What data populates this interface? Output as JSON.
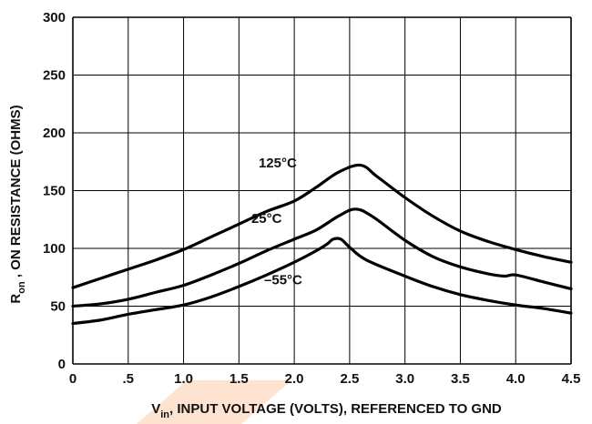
{
  "chart_data": {
    "type": "line",
    "title": "",
    "xlabel": {
      "main": "V",
      "sub": "in",
      "rest": ", INPUT VOLTAGE (VOLTS), REFERENCED TO GND"
    },
    "ylabel": {
      "main": "R",
      "sub": "on",
      "rest": " , ON RESISTANCE (OHMS)"
    },
    "xlim": [
      0,
      4.5
    ],
    "ylim": [
      0,
      300
    ],
    "grid": true,
    "x_ticks": [
      0,
      0.5,
      1.0,
      1.5,
      2.0,
      2.5,
      3.0,
      3.5,
      4.0,
      4.5
    ],
    "x_tick_labels": [
      "0",
      ".5",
      "1.0",
      "1.5",
      "2.0",
      "2.5",
      "3.0",
      "3.5",
      "4.0",
      "4.5"
    ],
    "y_ticks": [
      0,
      50,
      100,
      150,
      200,
      250,
      300
    ],
    "y_tick_labels": [
      "0",
      "50",
      "100",
      "150",
      "200",
      "250",
      "300"
    ],
    "series": [
      {
        "name": "125°C",
        "label_at": [
          1.85,
          170
        ],
        "x": [
          0,
          0.25,
          0.5,
          0.75,
          1.0,
          1.25,
          1.5,
          1.75,
          2.0,
          2.2,
          2.4,
          2.6,
          2.75,
          3.0,
          3.25,
          3.5,
          3.75,
          4.0,
          4.25,
          4.5
        ],
        "y": [
          66,
          74,
          82,
          90,
          99,
          110,
          121,
          132,
          141,
          153,
          166,
          172,
          162,
          144,
          128,
          115,
          106,
          99,
          93,
          88
        ]
      },
      {
        "name": "25°C",
        "label_at": [
          1.75,
          122
        ],
        "x": [
          0,
          0.25,
          0.5,
          0.75,
          1.0,
          1.25,
          1.5,
          1.75,
          2.0,
          2.2,
          2.4,
          2.55,
          2.7,
          3.0,
          3.25,
          3.5,
          3.75,
          3.9,
          4.0,
          4.25,
          4.5
        ],
        "y": [
          50,
          52,
          56,
          62,
          68,
          77,
          87,
          98,
          108,
          116,
          128,
          134,
          128,
          107,
          93,
          84,
          78,
          76,
          77,
          71,
          65
        ]
      },
      {
        "name": "–55°C",
        "label_at": [
          1.9,
          69
        ],
        "x": [
          0,
          0.25,
          0.5,
          0.75,
          1.0,
          1.25,
          1.5,
          1.75,
          2.0,
          2.2,
          2.3,
          2.35,
          2.42,
          2.5,
          2.65,
          3.0,
          3.25,
          3.5,
          3.75,
          4.0,
          4.25,
          4.5
        ],
        "y": [
          35,
          38,
          43,
          47,
          51,
          58,
          67,
          77,
          88,
          98,
          104,
          108,
          108,
          101,
          90,
          76,
          67,
          60,
          55,
          51,
          48,
          44
        ]
      }
    ],
    "colors": {
      "curve": "#000000",
      "grid": "#000000",
      "background": "#ffffff",
      "watermark": "#ffd9c2"
    }
  }
}
